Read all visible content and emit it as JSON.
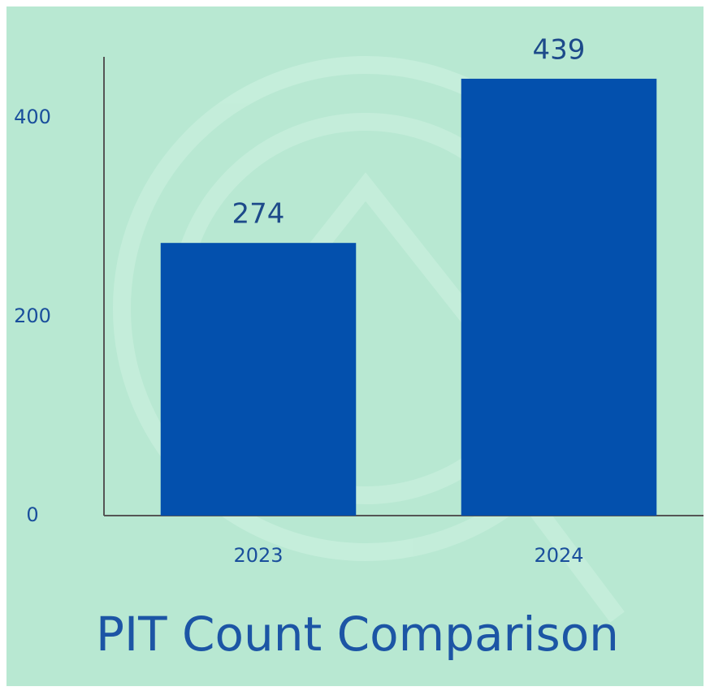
{
  "chart_data": {
    "type": "bar",
    "title": "PIT Count Comparison",
    "categories": [
      "2023",
      "2024"
    ],
    "values": [
      274,
      439
    ],
    "color": "#0350ad",
    "ylim": [
      0,
      461
    ],
    "yticks": [
      0,
      200,
      400
    ]
  }
}
